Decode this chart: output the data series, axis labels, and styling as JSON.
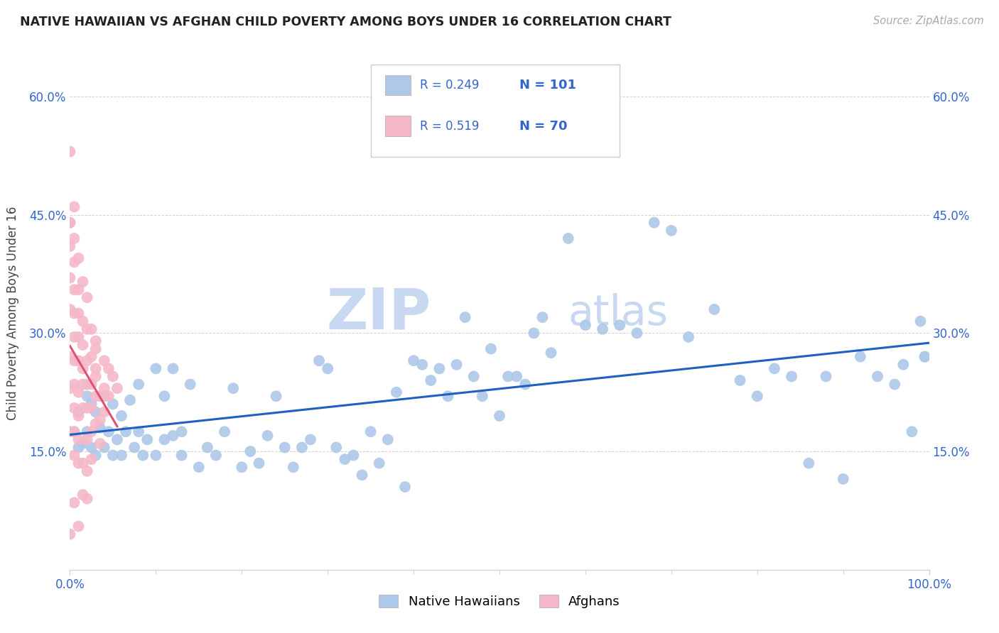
{
  "title": "NATIVE HAWAIIAN VS AFGHAN CHILD POVERTY AMONG BOYS UNDER 16 CORRELATION CHART",
  "source": "Source: ZipAtlas.com",
  "ylabel": "Child Poverty Among Boys Under 16",
  "xlim": [
    0,
    1.0
  ],
  "ylim": [
    0,
    0.65
  ],
  "xticks": [
    0.0,
    1.0
  ],
  "xticklabels": [
    "0.0%",
    "100.0%"
  ],
  "yticks": [
    0.0,
    0.15,
    0.3,
    0.45,
    0.6
  ],
  "yticklabels": [
    "",
    "15.0%",
    "30.0%",
    "45.0%",
    "60.0%"
  ],
  "legend_r1": "0.249",
  "legend_n1": "101",
  "legend_r2": "0.519",
  "legend_n2": "70",
  "color_hawaiian": "#adc8e8",
  "color_afghan": "#f5b8c8",
  "color_line_hawaiian": "#2060c0",
  "color_line_afghan": "#e05070",
  "color_axis_text": "#3366cc",
  "watermark_zip": "ZIP",
  "watermark_atlas": "atlas",
  "watermark_color": "#c8d8f0",
  "hawaiian_x": [
    0.005,
    0.01,
    0.01,
    0.015,
    0.02,
    0.02,
    0.025,
    0.025,
    0.03,
    0.03,
    0.035,
    0.04,
    0.04,
    0.045,
    0.05,
    0.05,
    0.055,
    0.06,
    0.06,
    0.065,
    0.07,
    0.075,
    0.08,
    0.08,
    0.085,
    0.09,
    0.1,
    0.1,
    0.11,
    0.11,
    0.12,
    0.12,
    0.13,
    0.13,
    0.14,
    0.15,
    0.16,
    0.17,
    0.18,
    0.19,
    0.2,
    0.21,
    0.22,
    0.23,
    0.24,
    0.25,
    0.26,
    0.27,
    0.28,
    0.29,
    0.3,
    0.31,
    0.32,
    0.33,
    0.34,
    0.35,
    0.36,
    0.37,
    0.38,
    0.39,
    0.4,
    0.41,
    0.42,
    0.43,
    0.44,
    0.45,
    0.46,
    0.47,
    0.48,
    0.49,
    0.5,
    0.51,
    0.52,
    0.53,
    0.54,
    0.55,
    0.56,
    0.58,
    0.6,
    0.62,
    0.64,
    0.66,
    0.68,
    0.7,
    0.72,
    0.75,
    0.78,
    0.8,
    0.82,
    0.84,
    0.86,
    0.88,
    0.9,
    0.92,
    0.94,
    0.96,
    0.97,
    0.98,
    0.99,
    0.995,
    0.995
  ],
  "hawaiian_y": [
    0.175,
    0.155,
    0.2,
    0.16,
    0.175,
    0.22,
    0.155,
    0.21,
    0.145,
    0.2,
    0.18,
    0.155,
    0.22,
    0.175,
    0.145,
    0.21,
    0.165,
    0.145,
    0.195,
    0.175,
    0.215,
    0.155,
    0.175,
    0.235,
    0.145,
    0.165,
    0.255,
    0.145,
    0.22,
    0.165,
    0.17,
    0.255,
    0.175,
    0.145,
    0.235,
    0.13,
    0.155,
    0.145,
    0.175,
    0.23,
    0.13,
    0.15,
    0.135,
    0.17,
    0.22,
    0.155,
    0.13,
    0.155,
    0.165,
    0.265,
    0.255,
    0.155,
    0.14,
    0.145,
    0.12,
    0.175,
    0.135,
    0.165,
    0.225,
    0.105,
    0.265,
    0.26,
    0.24,
    0.255,
    0.22,
    0.26,
    0.32,
    0.245,
    0.22,
    0.28,
    0.195,
    0.245,
    0.245,
    0.235,
    0.3,
    0.32,
    0.275,
    0.42,
    0.31,
    0.305,
    0.31,
    0.3,
    0.44,
    0.43,
    0.295,
    0.33,
    0.24,
    0.22,
    0.255,
    0.245,
    0.135,
    0.245,
    0.115,
    0.27,
    0.245,
    0.235,
    0.26,
    0.175,
    0.315,
    0.27,
    0.27
  ],
  "afghan_x": [
    0.0,
    0.0,
    0.0,
    0.0,
    0.0,
    0.0,
    0.0,
    0.0,
    0.0,
    0.0,
    0.005,
    0.005,
    0.005,
    0.005,
    0.005,
    0.005,
    0.005,
    0.005,
    0.005,
    0.005,
    0.005,
    0.005,
    0.01,
    0.01,
    0.01,
    0.01,
    0.01,
    0.01,
    0.01,
    0.01,
    0.01,
    0.01,
    0.015,
    0.015,
    0.015,
    0.015,
    0.015,
    0.015,
    0.015,
    0.015,
    0.02,
    0.02,
    0.02,
    0.02,
    0.02,
    0.02,
    0.02,
    0.02,
    0.025,
    0.025,
    0.025,
    0.025,
    0.025,
    0.025,
    0.03,
    0.03,
    0.03,
    0.03,
    0.03,
    0.03,
    0.035,
    0.035,
    0.035,
    0.04,
    0.04,
    0.04,
    0.045,
    0.045,
    0.05,
    0.055
  ],
  "afghan_y": [
    0.53,
    0.44,
    0.44,
    0.41,
    0.37,
    0.33,
    0.27,
    0.23,
    0.175,
    0.045,
    0.46,
    0.42,
    0.39,
    0.355,
    0.325,
    0.295,
    0.265,
    0.235,
    0.205,
    0.175,
    0.145,
    0.085,
    0.395,
    0.355,
    0.325,
    0.295,
    0.265,
    0.225,
    0.195,
    0.165,
    0.135,
    0.055,
    0.365,
    0.315,
    0.285,
    0.255,
    0.235,
    0.205,
    0.135,
    0.095,
    0.345,
    0.305,
    0.265,
    0.235,
    0.205,
    0.165,
    0.125,
    0.09,
    0.305,
    0.27,
    0.235,
    0.205,
    0.175,
    0.14,
    0.29,
    0.255,
    0.22,
    0.185,
    0.28,
    0.245,
    0.22,
    0.19,
    0.16,
    0.265,
    0.23,
    0.2,
    0.255,
    0.22,
    0.245,
    0.23
  ]
}
